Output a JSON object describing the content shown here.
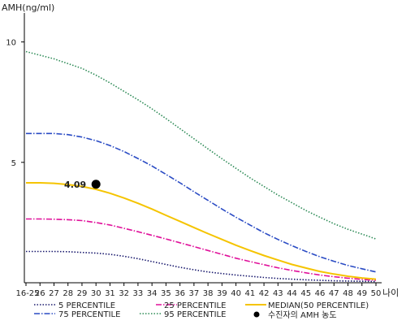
{
  "chart_data": {
    "type": "line",
    "ylabel": "AMH(ng/ml)",
    "xlabel": "나이",
    "y_ticks": [
      "10",
      "5"
    ],
    "y_tick_values": [
      10,
      5
    ],
    "ylim": [
      0,
      11
    ],
    "categories": [
      "16-25",
      "26",
      "27",
      "28",
      "29",
      "30",
      "31",
      "32",
      "33",
      "34",
      "35",
      "36",
      "37",
      "38",
      "39",
      "40",
      "41",
      "42",
      "43",
      "44",
      "45",
      "46",
      "47",
      "48",
      "49",
      "50"
    ],
    "series": [
      {
        "name": "5 PERCENTILE",
        "color": "#1a1a6e",
        "dash": "dots",
        "values": [
          1.3,
          1.3,
          1.3,
          1.29,
          1.26,
          1.23,
          1.18,
          1.1,
          1.0,
          0.88,
          0.76,
          0.64,
          0.54,
          0.45,
          0.38,
          0.32,
          0.27,
          0.22,
          0.18,
          0.15,
          0.12,
          0.1,
          0.08,
          0.07,
          0.06,
          0.05
        ]
      },
      {
        "name": "25 PERCENTILE",
        "color": "#e0109a",
        "dash": "dashdot",
        "values": [
          2.65,
          2.65,
          2.64,
          2.62,
          2.58,
          2.5,
          2.4,
          2.26,
          2.12,
          1.97,
          1.82,
          1.66,
          1.5,
          1.34,
          1.18,
          1.02,
          0.88,
          0.75,
          0.62,
          0.51,
          0.41,
          0.32,
          0.25,
          0.19,
          0.14,
          0.1
        ]
      },
      {
        "name": "MEDIAN(50 PERCENTILE)",
        "color": "#f5c400",
        "dash": "solid",
        "values": [
          4.15,
          4.15,
          4.13,
          4.08,
          4.0,
          3.88,
          3.72,
          3.52,
          3.3,
          3.06,
          2.8,
          2.55,
          2.29,
          2.04,
          1.8,
          1.56,
          1.34,
          1.13,
          0.94,
          0.76,
          0.61,
          0.47,
          0.36,
          0.27,
          0.2,
          0.15
        ]
      },
      {
        "name": "75 PERCENTILE",
        "color": "#2a4bc4",
        "dash": "dashdot",
        "values": [
          6.2,
          6.2,
          6.2,
          6.15,
          6.05,
          5.9,
          5.7,
          5.45,
          5.16,
          4.85,
          4.5,
          4.15,
          3.78,
          3.42,
          3.06,
          2.72,
          2.4,
          2.08,
          1.8,
          1.54,
          1.3,
          1.08,
          0.89,
          0.72,
          0.58,
          0.45
        ]
      },
      {
        "name": "95 PERCENTILE",
        "color": "#2e8b57",
        "dash": "dots",
        "values": [
          9.6,
          9.45,
          9.3,
          9.1,
          8.9,
          8.62,
          8.3,
          7.95,
          7.6,
          7.22,
          6.82,
          6.4,
          5.98,
          5.56,
          5.15,
          4.75,
          4.36,
          4.0,
          3.64,
          3.32,
          3.0,
          2.72,
          2.45,
          2.22,
          2.02,
          1.82
        ]
      }
    ],
    "patient": {
      "label": "수진자의 AMH 농도",
      "x": "30",
      "y": 4.09,
      "value_label": "4.09",
      "color": "#000000"
    },
    "legend_position": "bottom",
    "grid": false
  }
}
